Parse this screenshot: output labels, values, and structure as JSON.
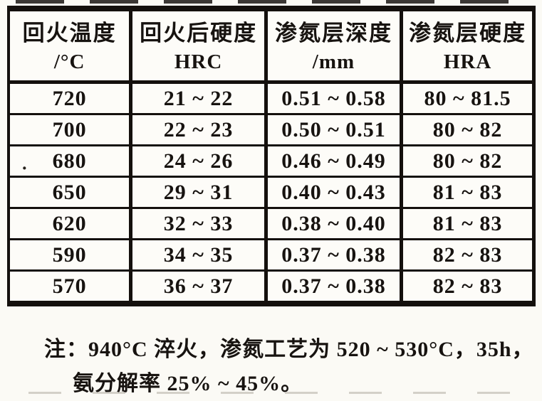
{
  "table": {
    "columns": [
      {
        "title": "回火温度",
        "unit": "/°C"
      },
      {
        "title": "回火后硬度",
        "unit": "HRC"
      },
      {
        "title": "渗氮层深度",
        "unit": "/mm"
      },
      {
        "title": "渗氮层硬度",
        "unit": "HRA"
      }
    ],
    "rows": [
      [
        "720",
        "21 ~ 22",
        "0.51 ~ 0.58",
        "80 ~ 81.5"
      ],
      [
        "700",
        "22 ~ 23",
        "0.50 ~ 0.51",
        "80 ~ 82"
      ],
      [
        "680",
        "24 ~ 26",
        "0.46 ~ 0.49",
        "80 ~ 82"
      ],
      [
        "650",
        "29 ~ 31",
        "0.40 ~ 0.43",
        "81 ~ 83"
      ],
      [
        "620",
        "32 ~ 33",
        "0.38 ~ 0.40",
        "81 ~ 83"
      ],
      [
        "590",
        "34 ~ 35",
        "0.37 ~ 0.38",
        "82 ~ 83"
      ],
      [
        "570",
        "36 ~ 37",
        "0.37 ~ 0.38",
        "82 ~ 83"
      ]
    ]
  },
  "note": {
    "line1": "注：940°C 淬火，渗氮工艺为 520 ~ 530°C，35h，",
    "line2": "氨分解率 25% ~ 45%。"
  },
  "artifacts": {
    "dot": "·"
  },
  "colors": {
    "ink": "#14100d",
    "paper": "#fbfaf5"
  }
}
